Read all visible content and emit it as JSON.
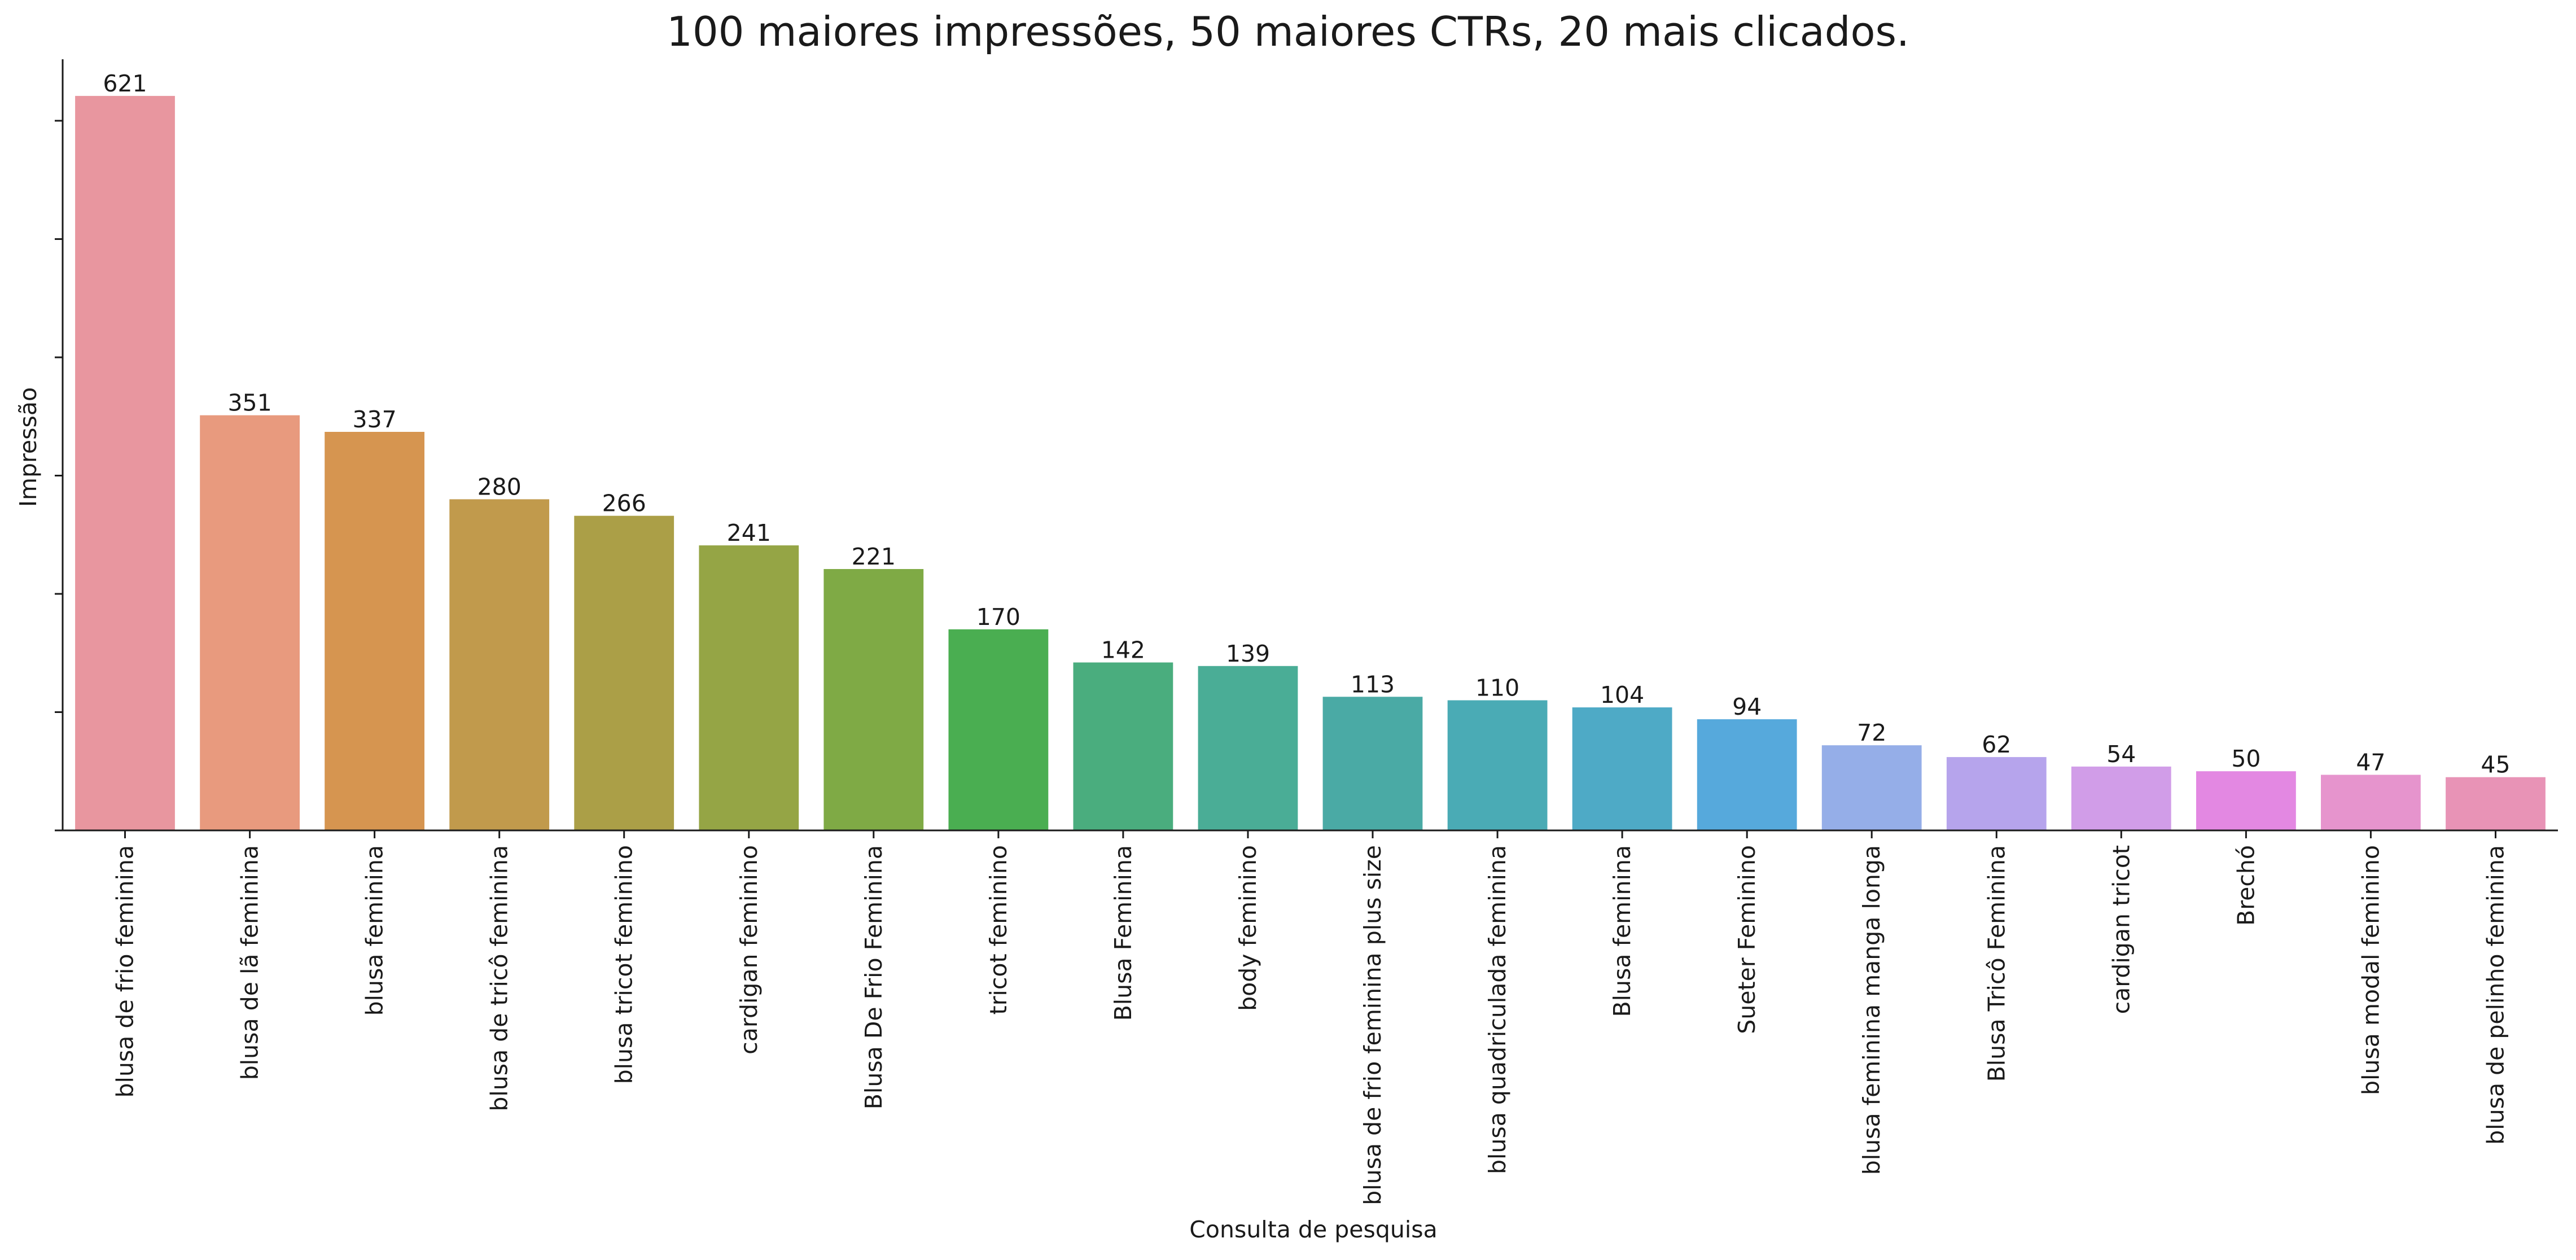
{
  "chart_data": {
    "type": "bar",
    "title": "100 maiores impressões, 50 maiores CTRs, 20 mais clicados.",
    "xlabel": "Consulta de pesquisa",
    "ylabel": "Impressão",
    "ylim": [
      0,
      652
    ],
    "grid": false,
    "categories": [
      "blusa de frio feminina",
      "blusa de lã feminina",
      "blusa feminina",
      "blusa de tricô feminina",
      "blusa tricot feminino",
      "cardigan feminino",
      "Blusa De Frio Feminina",
      "tricot feminino",
      "Blusa Feminina",
      "body feminino",
      "blusa de frio feminina plus size",
      "blusa quadriculada feminina",
      "Blusa feminina",
      "Sueter Feminino",
      "blusa feminina manga longa",
      "Blusa Tricô Feminina",
      "cardigan tricot",
      "Brechó",
      "blusa modal feminino",
      "blusa de pelinho feminina"
    ],
    "values": [
      621,
      351,
      337,
      280,
      266,
      241,
      221,
      170,
      142,
      139,
      113,
      110,
      104,
      94,
      72,
      62,
      54,
      50,
      47,
      45
    ],
    "colors": [
      "#e8969f",
      "#e89a7e",
      "#d69550",
      "#c19a4c",
      "#ab9f47",
      "#95a545",
      "#7faa45",
      "#4aae51",
      "#4aad7e",
      "#4aad96",
      "#4aaaa5",
      "#4aabb5",
      "#4eaac6",
      "#56a9dc",
      "#95aee8",
      "#b6a4ec",
      "#d19de8",
      "#e388e2",
      "#e694cd",
      "#e893b6"
    ]
  }
}
